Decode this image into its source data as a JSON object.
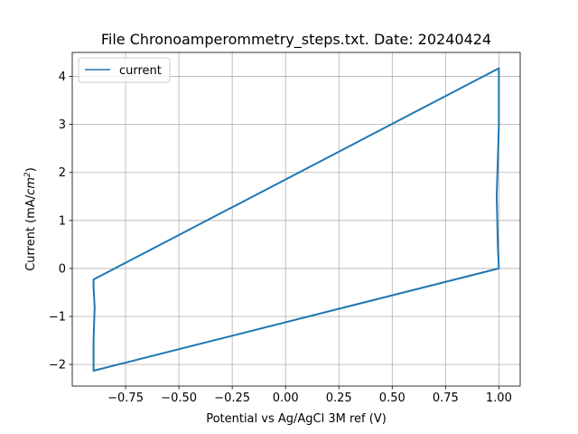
{
  "chart_data": {
    "type": "line",
    "title": "File Chronoamperommetry_steps.txt. Date: 20240424",
    "xlabel": "Potential vs Ag/AgCl 3M ref (V)",
    "ylabel_prefix": "Current (mA/",
    "ylabel_unit": "cm",
    "ylabel_exp": "2",
    "ylabel_suffix": ")",
    "xlim": [
      -1.0,
      1.1
    ],
    "ylim": [
      -2.45,
      4.5
    ],
    "xticks": [
      -0.75,
      -0.5,
      -0.25,
      0.0,
      0.25,
      0.5,
      0.75,
      1.0
    ],
    "xtick_labels": [
      "−0.75",
      "−0.50",
      "−0.25",
      "0.00",
      "0.25",
      "0.50",
      "0.75",
      "1.00"
    ],
    "yticks": [
      -2,
      -1,
      0,
      1,
      2,
      3,
      4
    ],
    "ytick_labels": [
      "−2",
      "−1",
      "0",
      "1",
      "2",
      "3",
      "4"
    ],
    "grid": true,
    "legend_position": "top-left",
    "series": [
      {
        "name": "current",
        "color": "#1f77b4",
        "x": [
          -0.9,
          1.0,
          1.0,
          0.99,
          0.995,
          1.0,
          -0.9,
          -0.9,
          -0.895,
          -0.9,
          -0.9,
          1.0
        ],
        "y": [
          -0.23,
          4.17,
          3.0,
          1.5,
          0.5,
          0.0,
          -2.13,
          -1.5,
          -0.8,
          -0.4,
          -0.23,
          4.17
        ]
      }
    ]
  }
}
